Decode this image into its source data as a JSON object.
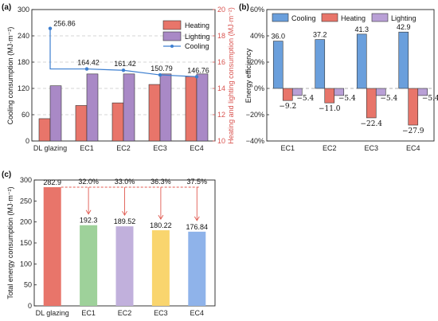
{
  "chart_data": [
    {
      "panel": "(a)",
      "type": "bar",
      "categories": [
        "DL glazing",
        "EC1",
        "EC2",
        "EC3",
        "EC4"
      ],
      "ylabel_left": "Cooling consumption (MJ·m⁻²)",
      "ylabel_right": "Heating and lighting consumption (MJ·m⁻²)",
      "ylim_left": [
        0,
        300
      ],
      "yticks_left": [
        "0",
        "60",
        "120",
        "180",
        "240",
        "300"
      ],
      "ylim_right": [
        10,
        20
      ],
      "yticks_right": [
        "10",
        "12",
        "14",
        "16",
        "18",
        "20"
      ],
      "series": [
        {
          "name": "Heating",
          "axis": "right",
          "color": "#e8756a",
          "values": [
            11.7,
            12.7,
            12.9,
            14.3,
            14.9
          ]
        },
        {
          "name": "Lighting",
          "axis": "right",
          "color": "#a989c6",
          "values": [
            14.2,
            15.1,
            15.1,
            15.1,
            15.1
          ]
        },
        {
          "name": "Cooling",
          "axis": "left",
          "type": "line",
          "color": "#3d7fd0",
          "values": [
            256.86,
            164.42,
            161.42,
            150.79,
            146.76
          ]
        }
      ],
      "data_labels": [
        "256.86",
        "164.42",
        "161.42",
        "150.79",
        "146.76"
      ],
      "grid": "dashed horizontal",
      "legend": "top-right"
    },
    {
      "panel": "(b)",
      "type": "bar",
      "categories": [
        "EC1",
        "EC2",
        "EC3",
        "EC4"
      ],
      "ylabel": "Energy efficiency",
      "ylim": [
        -40,
        60
      ],
      "yticks": [
        "−40%",
        "−20%",
        "0%",
        "20%",
        "40%",
        "60%"
      ],
      "series": [
        {
          "name": "Cooling",
          "color": "#6a9fdc",
          "values": [
            36.0,
            37.2,
            41.3,
            42.9
          ],
          "labels": [
            "36.0",
            "37.2",
            "41.3",
            "42.9"
          ]
        },
        {
          "name": "Heating",
          "color": "#e8756a",
          "values": [
            -9.2,
            -11.0,
            -22.4,
            -27.9
          ],
          "labels": [
            "−9.2",
            "−11.0",
            "−22.4",
            "−27.9"
          ]
        },
        {
          "name": "Lighting",
          "color": "#b9a0d6",
          "values": [
            -5.4,
            -5.4,
            -5.4,
            -5.4
          ],
          "labels": [
            "−5.4",
            "−5.4",
            "−5.4",
            "−5.4"
          ]
        }
      ],
      "legend": "top"
    },
    {
      "panel": "(c)",
      "type": "bar",
      "categories": [
        "DL glazing",
        "EC1",
        "EC2",
        "EC3",
        "EC4"
      ],
      "ylabel": "Total energy consumption (MJ·m⁻²)",
      "ylim": [
        0,
        300
      ],
      "yticks": [
        "0",
        "50",
        "100",
        "150",
        "200",
        "250",
        "300"
      ],
      "values": [
        282.9,
        192.3,
        189.52,
        180.22,
        176.84
      ],
      "value_labels": [
        "282.9",
        "192.3",
        "189.52",
        "180.22",
        "176.84"
      ],
      "colors": [
        "#e8756a",
        "#9ed19a",
        "#c1b0dc",
        "#f9d56e",
        "#8fb3ea"
      ],
      "reduction_labels": [
        "32.0%",
        "33.0%",
        "36.3%",
        "37.5%"
      ]
    }
  ]
}
